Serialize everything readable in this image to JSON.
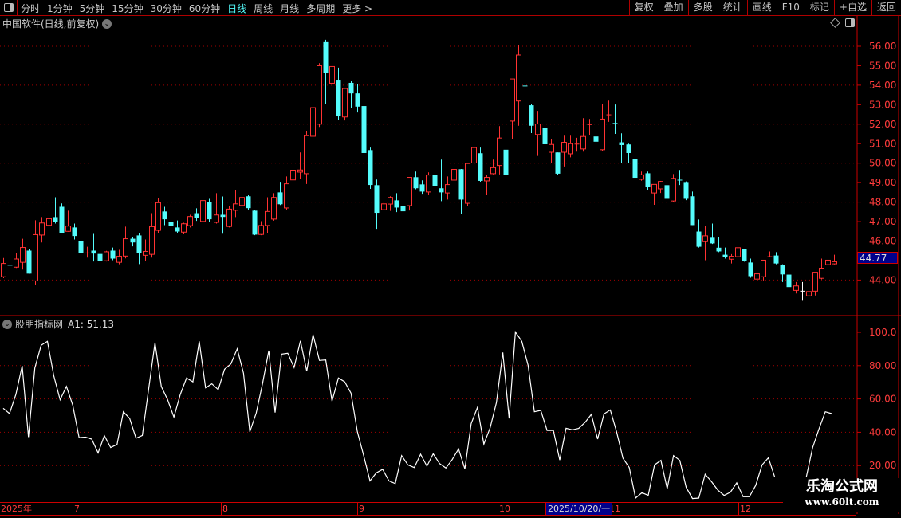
{
  "topbar": {
    "periods": [
      "分时",
      "1分钟",
      "5分钟",
      "15分钟",
      "30分钟",
      "60分钟",
      "日线",
      "周线",
      "月线",
      "多周期",
      "更多 >"
    ],
    "active_period": "日线",
    "buttons": [
      "复权",
      "叠加",
      "多股",
      "统计",
      "画线",
      "F10",
      "标记",
      "+自选",
      "返回"
    ]
  },
  "main": {
    "title": "中国软件(日线,前复权)",
    "last_price_label": "44.77"
  },
  "indicator": {
    "name": "股朋指标网",
    "value_label": "A1: 51.13"
  },
  "date_axis": {
    "labels": [
      "2025年",
      "7",
      "8",
      "9",
      "10",
      "11",
      "12"
    ],
    "cursor_date": "2025/10/20/一"
  },
  "watermark": {
    "line1": "乐淘公式网",
    "line2": "www.60lt.com"
  },
  "colors": {
    "up": "#ff3232",
    "down": "#54fcfc",
    "neutral": "#ffffff",
    "grid": "#a00000",
    "axis": "#ff3c3c",
    "line": "#ffffff",
    "background": "#000000",
    "cursor_box": "#00008b"
  },
  "chart_data": [
    {
      "type": "candlestick",
      "title": "中国软件(日线,前复权)",
      "ylim": [
        42.5,
        57.0
      ],
      "yticks": [
        44,
        46,
        47,
        48,
        49,
        50,
        51,
        52,
        53,
        54,
        55,
        56
      ],
      "ytick_labels": [
        "44.00",
        "46.00",
        "47.00",
        "48.00",
        "49.00",
        "50.00",
        "51.00",
        "52.00",
        "53.00",
        "54.00",
        "55.00",
        "56.00"
      ],
      "grid_levels": [
        44,
        46,
        48,
        50,
        52,
        54,
        56
      ],
      "grid": true,
      "ohlc_fields": [
        "open",
        "high",
        "low",
        "close"
      ],
      "ohlc": [
        [
          44.17,
          45.13,
          44.1,
          44.85
        ],
        [
          44.78,
          45.1,
          44.63,
          44.76
        ],
        [
          44.66,
          45.37,
          44.62,
          45.08
        ],
        [
          44.91,
          46.12,
          44.54,
          45.67
        ],
        [
          45.51,
          45.59,
          44.33,
          44.33
        ],
        [
          43.96,
          47.07,
          43.76,
          46.33
        ],
        [
          46.31,
          47.23,
          45.93,
          46.93
        ],
        [
          46.81,
          47.3,
          46.38,
          47.15
        ],
        [
          47.23,
          48.25,
          46.9,
          47.0
        ],
        [
          47.76,
          47.93,
          46.42,
          46.42
        ],
        [
          46.5,
          47.56,
          46.48,
          46.77
        ],
        [
          46.7,
          46.9,
          46.08,
          46.26
        ],
        [
          46.0,
          46.08,
          45.32,
          45.4
        ],
        [
          45.41,
          45.71,
          45.15,
          45.41
        ],
        [
          45.51,
          46.37,
          44.95,
          45.36
        ],
        [
          45.34,
          45.34,
          44.9,
          44.99
        ],
        [
          44.99,
          45.5,
          44.95,
          45.45
        ],
        [
          45.51,
          45.67,
          45.02,
          45.1
        ],
        [
          44.91,
          45.55,
          44.81,
          45.22
        ],
        [
          45.23,
          46.74,
          45.11,
          46.12
        ],
        [
          46.12,
          46.2,
          45.73,
          45.93
        ],
        [
          46.29,
          46.41,
          44.82,
          45.4
        ],
        [
          45.27,
          46.08,
          44.99,
          45.47
        ],
        [
          45.32,
          47.43,
          45.15,
          46.74
        ],
        [
          46.55,
          48.21,
          46.4,
          47.97
        ],
        [
          47.52,
          47.76,
          46.82,
          47.12
        ],
        [
          46.98,
          47.35,
          46.63,
          46.78
        ],
        [
          46.7,
          47.06,
          46.41,
          46.49
        ],
        [
          46.46,
          46.94,
          46.35,
          46.89
        ],
        [
          46.79,
          47.35,
          46.7,
          47.26
        ],
        [
          47.43,
          47.68,
          47.04,
          47.2
        ],
        [
          47.01,
          48.25,
          46.95,
          48.08
        ],
        [
          48.01,
          48.17,
          46.96,
          47.12
        ],
        [
          46.96,
          48.46,
          46.9,
          47.34
        ],
        [
          47.35,
          48.29,
          46.38,
          47.24
        ],
        [
          46.75,
          47.8,
          46.7,
          47.64
        ],
        [
          47.58,
          48.62,
          47.23,
          47.91
        ],
        [
          47.83,
          48.5,
          47.28,
          48.24
        ],
        [
          48.3,
          48.35,
          47.6,
          47.69
        ],
        [
          47.56,
          47.6,
          46.3,
          46.33
        ],
        [
          46.34,
          47.02,
          46.3,
          46.8
        ],
        [
          46.8,
          48.25,
          46.42,
          47.52
        ],
        [
          47.13,
          48.46,
          47.05,
          48.24
        ],
        [
          48.5,
          49.0,
          47.85,
          47.89
        ],
        [
          47.7,
          49.32,
          47.6,
          48.94
        ],
        [
          49.14,
          50.1,
          48.78,
          49.64
        ],
        [
          49.54,
          50.55,
          49.2,
          49.65
        ],
        [
          49.46,
          51.66,
          48.93,
          51.41
        ],
        [
          51.38,
          54.85,
          51.0,
          52.85
        ],
        [
          52.0,
          55.13,
          51.86,
          55.0
        ],
        [
          56.21,
          56.33,
          53.02,
          54.61
        ],
        [
          54.1,
          56.7,
          53.87,
          54.96
        ],
        [
          54.24,
          54.9,
          52.2,
          52.4
        ],
        [
          52.37,
          53.83,
          52.19,
          53.83
        ],
        [
          54.12,
          54.2,
          52.85,
          53.58
        ],
        [
          53.58,
          54.08,
          52.6,
          52.9
        ],
        [
          52.93,
          52.97,
          50.24,
          50.52
        ],
        [
          50.67,
          50.8,
          48.68,
          48.88
        ],
        [
          48.87,
          49.16,
          46.63,
          47.45
        ],
        [
          47.61,
          48.05,
          47.04,
          47.91
        ],
        [
          47.9,
          48.3,
          47.55,
          48.24
        ],
        [
          48.09,
          48.46,
          47.49,
          47.72
        ],
        [
          47.8,
          48.13,
          47.48,
          47.53
        ],
        [
          47.82,
          49.27,
          47.57,
          49.27
        ],
        [
          49.28,
          49.57,
          48.66,
          48.71
        ],
        [
          48.91,
          49.12,
          48.39,
          48.54
        ],
        [
          48.52,
          49.53,
          48.35,
          49.39
        ],
        [
          49.39,
          49.39,
          48.6,
          48.84
        ],
        [
          48.71,
          50.18,
          48.05,
          48.5
        ],
        [
          48.47,
          49.32,
          48.13,
          48.9
        ],
        [
          49.13,
          50.1,
          48.68,
          49.68
        ],
        [
          49.69,
          49.7,
          47.41,
          48.13
        ],
        [
          47.94,
          49.98,
          47.82,
          49.98
        ],
        [
          50.01,
          51.55,
          49.74,
          50.8
        ],
        [
          50.51,
          50.8,
          49.01,
          49.09
        ],
        [
          49.09,
          49.4,
          48.35,
          49.27
        ],
        [
          49.46,
          50.18,
          49.42,
          49.77
        ],
        [
          49.88,
          51.9,
          49.42,
          51.29
        ],
        [
          50.69,
          50.73,
          49.25,
          49.4
        ],
        [
          52.16,
          54.32,
          51.22,
          54.32
        ],
        [
          53.19,
          56.04,
          51.92,
          55.55
        ],
        [
          53.98,
          55.92,
          52.94,
          53.98
        ],
        [
          52.97,
          53.02,
          51.54,
          51.92
        ],
        [
          51.47,
          52.68,
          50.37,
          52.01
        ],
        [
          51.82,
          52.33,
          50.84,
          50.97
        ],
        [
          50.56,
          51.25,
          50.0,
          50.96
        ],
        [
          50.55,
          50.55,
          49.4,
          49.46
        ],
        [
          50.56,
          51.41,
          49.83,
          51.07
        ],
        [
          50.48,
          51.41,
          50.3,
          51.0
        ],
        [
          51.0,
          51.3,
          50.59,
          51.0
        ],
        [
          50.73,
          52.31,
          50.59,
          51.37
        ],
        [
          52.0,
          52.27,
          51.45,
          52.0
        ],
        [
          51.37,
          52.68,
          50.56,
          51.1
        ],
        [
          50.69,
          53.05,
          50.6,
          52.26
        ],
        [
          52.5,
          53.21,
          52.12,
          52.5
        ],
        [
          52.06,
          53.01,
          51.5,
          52.04
        ],
        [
          51.07,
          51.53,
          50.02,
          50.93
        ],
        [
          50.96,
          51.0,
          50.02,
          50.52
        ],
        [
          50.22,
          50.22,
          49.25,
          49.25
        ],
        [
          49.17,
          49.57,
          49.1,
          49.4
        ],
        [
          49.48,
          49.57,
          48.6,
          48.76
        ],
        [
          48.47,
          48.91,
          47.86,
          48.91
        ],
        [
          48.68,
          49.09,
          48.47,
          49.06
        ],
        [
          48.87,
          49.06,
          48.13,
          48.17
        ],
        [
          48.06,
          49.44,
          48.0,
          49.22
        ],
        [
          49.15,
          49.65,
          48.88,
          49.13
        ],
        [
          48.99,
          49.06,
          48.1,
          48.17
        ],
        [
          48.3,
          48.54,
          46.82,
          46.82
        ],
        [
          46.49,
          47.11,
          45.67,
          45.71
        ],
        [
          45.97,
          46.77,
          45.02,
          46.27
        ],
        [
          46.17,
          46.9,
          45.85,
          45.88
        ],
        [
          45.66,
          46.2,
          45.43,
          45.47
        ],
        [
          45.3,
          45.67,
          45.1,
          45.18
        ],
        [
          45.07,
          45.33,
          44.85,
          45.22
        ],
        [
          45.2,
          45.84,
          45.02,
          45.66
        ],
        [
          45.59,
          45.6,
          44.94,
          44.99
        ],
        [
          44.9,
          45.1,
          44.12,
          44.2
        ],
        [
          44.05,
          44.4,
          43.8,
          44.32
        ],
        [
          44.17,
          45.02,
          43.98,
          45.02
        ],
        [
          45.22,
          45.47,
          45.18,
          45.22
        ],
        [
          45.26,
          45.43,
          44.81,
          44.85
        ],
        [
          44.77,
          44.81,
          43.9,
          44.29
        ],
        [
          44.28,
          44.48,
          43.47,
          43.64
        ],
        [
          43.47,
          43.9,
          43.31,
          43.7
        ],
        [
          43.45,
          43.9,
          42.94,
          43.45
        ],
        [
          43.19,
          43.65,
          43.15,
          43.41
        ],
        [
          43.43,
          44.4,
          43.21,
          44.4
        ],
        [
          44.09,
          45.1,
          44.03,
          44.61
        ],
        [
          44.79,
          45.39,
          44.75,
          45.02
        ],
        [
          44.83,
          45.3,
          44.8,
          44.94
        ]
      ]
    },
    {
      "type": "line",
      "series_label": "A1",
      "ylim": [
        -3,
        106
      ],
      "yticks": [
        20,
        40,
        60,
        80,
        100
      ],
      "ytick_labels": [
        "20.00",
        "40.00",
        "60.00",
        "80.00",
        "100.0"
      ],
      "grid_levels": [
        20,
        40,
        60,
        80
      ],
      "grid": true,
      "values": [
        54.4,
        51.2,
        62.7,
        79.9,
        37.1,
        78.6,
        92.2,
        94.6,
        73.8,
        59.5,
        67.5,
        56.3,
        36.8,
        37.1,
        35.9,
        27.6,
        38.0,
        30.8,
        32.7,
        52.3,
        48.3,
        36.4,
        38.1,
        65.9,
        93.8,
        67.5,
        59.5,
        49.1,
        62.7,
        72.6,
        70.3,
        94.6,
        66.7,
        69.1,
        65.6,
        77.8,
        81.0,
        90.1,
        75.4,
        40.3,
        51.5,
        69.1,
        89.0,
        51.8,
        86.9,
        87.4,
        78.9,
        94.9,
        76.7,
        98.6,
        83.1,
        83.4,
        58.7,
        72.6,
        70.3,
        63.5,
        40.3,
        26.0,
        10.8,
        15.6,
        17.7,
        10.8,
        9.2,
        26.0,
        20.4,
        18.8,
        26.8,
        19.6,
        27.1,
        21.2,
        18.5,
        23.6,
        30.0,
        18.0,
        45.1,
        55.0,
        32.8,
        42.7,
        57.9,
        87.9,
        48.3,
        100.2,
        94.6,
        80.2,
        52.3,
        53.1,
        41.1,
        41.1,
        23.3,
        42.4,
        41.5,
        42.3,
        45.9,
        50.7,
        35.9,
        51.0,
        53.4,
        40.3,
        24.4,
        18.8,
        0.5,
        3.7,
        2.1,
        20.4,
        23.1,
        6.1,
        26.0,
        23.1,
        6.9,
        0.2,
        0.5,
        14.8,
        10.4,
        5.3,
        2.1,
        4.0,
        9.6,
        1.3,
        1.3,
        8.1,
        20.4,
        24.7,
        13.2,
        null,
        null,
        null,
        null,
        13.2,
        30.8,
        41.9,
        52.3,
        51.2
      ]
    }
  ]
}
